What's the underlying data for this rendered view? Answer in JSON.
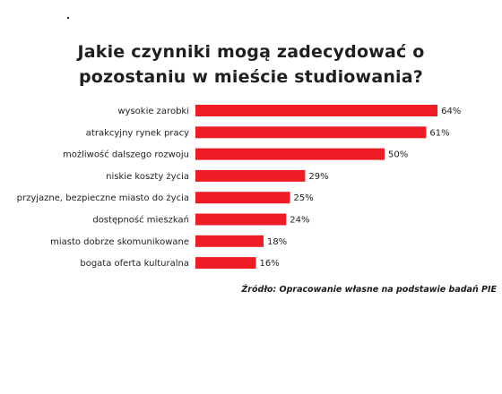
{
  "title_line1": "Jakie czynniki mogą zadecydować o",
  "title_line2": "pozostaniu w mieście studiowania?",
  "source": "Źródło: Opracowanie własne na podstawie badań PIE",
  "colors": {
    "bar": "#ee1c25",
    "text": "#1f1f1f"
  },
  "chart_data": {
    "type": "bar",
    "orientation": "horizontal",
    "title": "Jakie czynniki mogą zadecydować o pozostaniu w mieście studiowania?",
    "categories": [
      "wysokie zarobki",
      "atrakcyjny rynek pracy",
      "możliwość dalszego rozwoju",
      "niskie koszty życia",
      "przyjazne, bezpieczne miasto do życia",
      "dostępność mieszkań",
      "miasto dobrze skomunikowane",
      "bogata oferta kulturalna"
    ],
    "values": [
      64,
      61,
      50,
      29,
      25,
      24,
      18,
      16
    ],
    "value_labels": [
      "64%",
      "61%",
      "50%",
      "29%",
      "25%",
      "24%",
      "18%",
      "16%"
    ],
    "unit": "%",
    "xlim": [
      0,
      100
    ],
    "grid": false,
    "legend": "none",
    "xlabel": "",
    "ylabel": ""
  }
}
